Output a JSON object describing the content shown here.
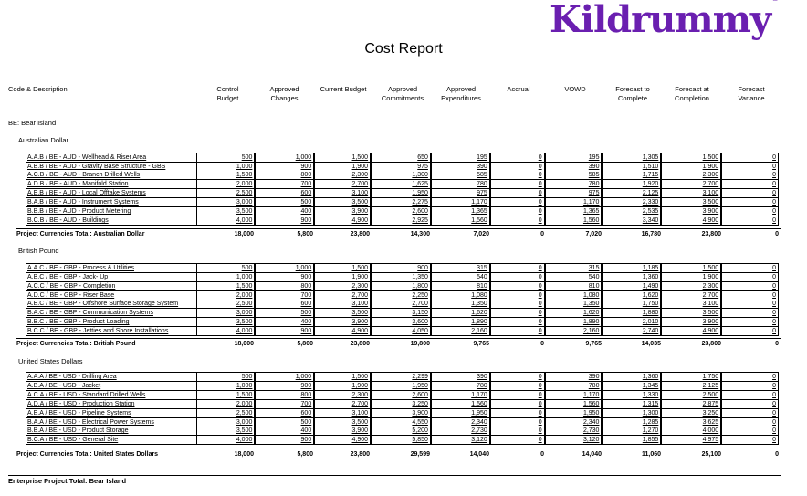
{
  "brand": {
    "logo_text": "Kildrummy",
    "registered_mark": "®",
    "color": "#6a1fb0"
  },
  "report": {
    "title": "Cost Report"
  },
  "columns": {
    "code_description": "Code & Description",
    "control_budget": [
      "Control",
      "Budget"
    ],
    "approved_changes": [
      "Approved",
      "Changes"
    ],
    "current_budget": [
      "Current Budget",
      ""
    ],
    "approved_commitments": [
      "Approved",
      "Commitments"
    ],
    "approved_expenditures": [
      "Approved",
      "Expenditures"
    ],
    "accrual": [
      "Accrual",
      ""
    ],
    "vowd": [
      "VOWD",
      ""
    ],
    "forecast_to_complete": [
      "Forecast to",
      "Complete"
    ],
    "forecast_at_completion": [
      "Forecast at",
      "Completion"
    ],
    "forecast_variance": [
      "Forecast",
      "Variance"
    ]
  },
  "project": {
    "label": "BE: Bear Island",
    "enterprise_total_label": "Enterprise Project Total: Bear Island"
  },
  "groups": [
    {
      "currency": "Australian Dollar",
      "rows": [
        {
          "desc": "A.A.B / BE - AUD - Wellhead & Riser Area",
          "v": [
            "500",
            "1,000",
            "1,500",
            "650",
            "195",
            "0",
            "195",
            "1,305",
            "1,500",
            "0"
          ]
        },
        {
          "desc": "A.B.B / BE - AUD - Gravity Base Structure - GBS",
          "v": [
            "1,000",
            "900",
            "1,900",
            "975",
            "390",
            "0",
            "390",
            "1,510",
            "1,900",
            "0"
          ]
        },
        {
          "desc": "A.C.B / BE - AUD - Branch Drilled Wells",
          "v": [
            "1,500",
            "800",
            "2,300",
            "1,300",
            "585",
            "0",
            "585",
            "1,715",
            "2,300",
            "0"
          ]
        },
        {
          "desc": "A.D.B / BE - AUD - Manifold Station",
          "v": [
            "2,000",
            "700",
            "2,700",
            "1,625",
            "780",
            "0",
            "780",
            "1,920",
            "2,700",
            "0"
          ]
        },
        {
          "desc": "A.E.B / BE - AUD - Local Offtake Systems",
          "v": [
            "2,500",
            "600",
            "3,100",
            "1,950",
            "975",
            "0",
            "975",
            "2,125",
            "3,100",
            "0"
          ]
        },
        {
          "desc": "B.A.B / BE - AUD - Instrument Systems",
          "v": [
            "3,000",
            "500",
            "3,500",
            "2,275",
            "1,170",
            "0",
            "1,170",
            "2,330",
            "3,500",
            "0"
          ]
        },
        {
          "desc": "B.B.B / BE - AUD - Product Metering",
          "v": [
            "3,500",
            "400",
            "3,900",
            "2,600",
            "1,365",
            "0",
            "1,365",
            "2,535",
            "3,900",
            "0"
          ]
        },
        {
          "desc": "B.C.B / BE - AUD - Buildings",
          "v": [
            "4,000",
            "900",
            "4,900",
            "2,925",
            "1,560",
            "0",
            "1,560",
            "3,340",
            "4,900",
            "0"
          ]
        }
      ],
      "total_label": "Project Currencies Total: Australian Dollar",
      "total": [
        "18,000",
        "5,800",
        "23,800",
        "14,300",
        "7,020",
        "0",
        "7,020",
        "16,780",
        "23,800",
        "0"
      ]
    },
    {
      "currency": "British Pound",
      "rows": [
        {
          "desc": "A.A.C / BE - GBP - Process & Utilities",
          "v": [
            "500",
            "1,000",
            "1,500",
            "900",
            "315",
            "0",
            "315",
            "1,185",
            "1,500",
            "0"
          ]
        },
        {
          "desc": "A.B.C / BE - GBP - Jack- Up",
          "v": [
            "1,000",
            "900",
            "1,900",
            "1,350",
            "540",
            "0",
            "540",
            "1,360",
            "1,900",
            "0"
          ]
        },
        {
          "desc": "A.C.C / BE - GBP - Completion",
          "v": [
            "1,500",
            "800",
            "2,300",
            "1,800",
            "810",
            "0",
            "810",
            "1,490",
            "2,300",
            "0"
          ]
        },
        {
          "desc": "A.D.C / BE - GBP - Riser Base",
          "v": [
            "2,000",
            "700",
            "2,700",
            "2,250",
            "1,080",
            "0",
            "1,080",
            "1,620",
            "2,700",
            "0"
          ]
        },
        {
          "desc": "A.E.C / BE - GBP - Offshore Surface Storage System",
          "v": [
            "2,500",
            "600",
            "3,100",
            "2,700",
            "1,350",
            "0",
            "1,350",
            "1,750",
            "3,100",
            "0"
          ]
        },
        {
          "desc": "B.A.C / BE - GBP - Communication Systems",
          "v": [
            "3,000",
            "500",
            "3,500",
            "3,150",
            "1,620",
            "0",
            "1,620",
            "1,880",
            "3,500",
            "0"
          ]
        },
        {
          "desc": "B.B.C / BE - GBP - Product Loading",
          "v": [
            "3,500",
            "400",
            "3,900",
            "3,600",
            "1,890",
            "0",
            "1,890",
            "2,010",
            "3,900",
            "0"
          ]
        },
        {
          "desc": "B.C.C / BE - GBP - Jetties and Shore Installations",
          "v": [
            "4,000",
            "900",
            "4,900",
            "4,050",
            "2,160",
            "0",
            "2,160",
            "2,740",
            "4,900",
            "0"
          ]
        }
      ],
      "total_label": "Project Currencies Total: British Pound",
      "total": [
        "18,000",
        "5,800",
        "23,800",
        "19,800",
        "9,765",
        "0",
        "9,765",
        "14,035",
        "23,800",
        "0"
      ]
    },
    {
      "currency": "United States Dollars",
      "rows": [
        {
          "desc": "A.A.A / BE - USD - Drilling Area",
          "v": [
            "500",
            "1,000",
            "1,500",
            "2,299",
            "390",
            "0",
            "390",
            "1,360",
            "1,750",
            "0"
          ]
        },
        {
          "desc": "A.B.A / BE - USD - Jacket",
          "v": [
            "1,000",
            "900",
            "1,900",
            "1,950",
            "780",
            "0",
            "780",
            "1,345",
            "2,125",
            "0"
          ]
        },
        {
          "desc": "A.C.A / BE - USD - Standard Drilled Wells",
          "v": [
            "1,500",
            "800",
            "2,300",
            "2,600",
            "1,170",
            "0",
            "1,170",
            "1,330",
            "2,500",
            "0"
          ]
        },
        {
          "desc": "A.D.A / BE - USD - Production Station",
          "v": [
            "2,000",
            "700",
            "2,700",
            "3,250",
            "1,560",
            "0",
            "1,560",
            "1,315",
            "2,875",
            "0"
          ]
        },
        {
          "desc": "A.E.A / BE - USD - Pipeline Systems",
          "v": [
            "2,500",
            "600",
            "3,100",
            "3,900",
            "1,950",
            "0",
            "1,950",
            "1,300",
            "3,250",
            "0"
          ]
        },
        {
          "desc": "B.A.A / BE - USD - Electrical Power Systems",
          "v": [
            "3,000",
            "500",
            "3,500",
            "4,550",
            "2,340",
            "0",
            "2,340",
            "1,285",
            "3,625",
            "0"
          ]
        },
        {
          "desc": "B.B.A / BE - USD - Product Storage",
          "v": [
            "3,500",
            "400",
            "3,900",
            "5,200",
            "2,730",
            "0",
            "2,730",
            "1,270",
            "4,000",
            "0"
          ]
        },
        {
          "desc": "B.C.A / BE - USD - General Site",
          "v": [
            "4,000",
            "900",
            "4,900",
            "5,850",
            "3,120",
            "0",
            "3,120",
            "1,855",
            "4,975",
            "0"
          ]
        }
      ],
      "total_label": "Project Currencies Total: United States Dollars",
      "total": [
        "18,000",
        "5,800",
        "23,800",
        "29,599",
        "14,040",
        "0",
        "14,040",
        "11,060",
        "25,100",
        "0"
      ]
    }
  ]
}
